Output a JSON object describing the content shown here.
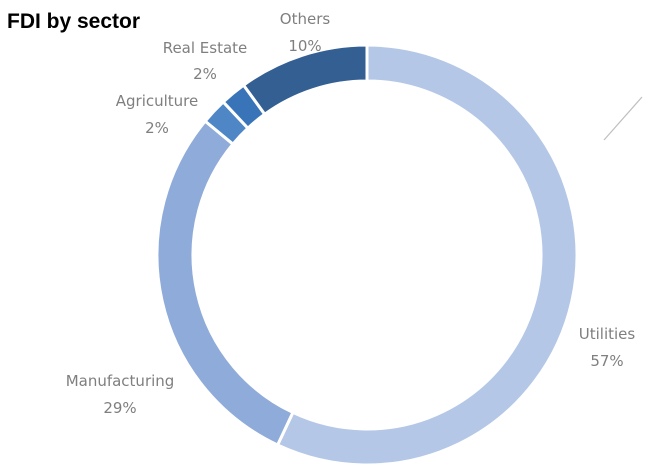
{
  "chart_data": {
    "type": "pie",
    "donut": true,
    "title": "FDI by sector",
    "slices": [
      {
        "label": "Utilities",
        "value": 57,
        "value_label": "57%",
        "color": "#b4c7e7"
      },
      {
        "label": "Manufacturing",
        "value": 29,
        "value_label": "29%",
        "color": "#8fabd9"
      },
      {
        "label": "Agriculture",
        "value": 2,
        "value_label": "2%",
        "color": "#4e86c6"
      },
      {
        "label": "Real Estate",
        "value": 2,
        "value_label": "2%",
        "color": "#3a74b8"
      },
      {
        "label": "Others",
        "value": 10,
        "value_label": "10%",
        "color": "#335f93"
      }
    ]
  }
}
